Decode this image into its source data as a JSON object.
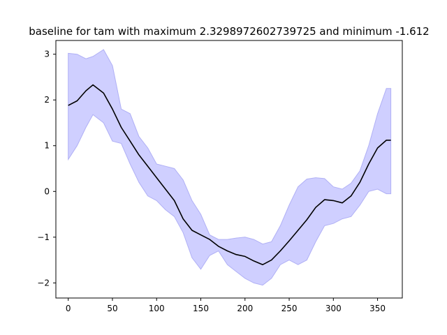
{
  "chart_data": {
    "type": "line",
    "title": "baseline for tam with maximum 2.3298972602739725 and minimum -1.612",
    "xlabel": "",
    "ylabel": "",
    "xlim": [
      -14,
      378
    ],
    "ylim": [
      -2.33,
      3.3
    ],
    "x_ticks": [
      0,
      50,
      100,
      150,
      200,
      250,
      300,
      350
    ],
    "y_ticks": [
      -2,
      -1,
      0,
      1,
      2,
      3
    ],
    "grid": false,
    "legend": "none",
    "colors": {
      "line": "#000000",
      "band_fill": "#cfcfff",
      "band_edge": "#b0b0f5"
    },
    "series": [
      {
        "x": [
          0,
          10,
          20,
          28,
          40,
          50,
          60,
          70,
          80,
          90,
          100,
          110,
          120,
          130,
          140,
          150,
          160,
          170,
          180,
          190,
          200,
          210,
          220,
          230,
          240,
          250,
          260,
          270,
          280,
          290,
          300,
          310,
          320,
          330,
          340,
          350,
          360,
          365
        ],
        "y": [
          1.88,
          1.98,
          2.2,
          2.33,
          2.15,
          1.8,
          1.4,
          1.1,
          0.8,
          0.55,
          0.3,
          0.05,
          -0.2,
          -0.6,
          -0.85,
          -0.95,
          -1.05,
          -1.2,
          -1.3,
          -1.38,
          -1.42,
          -1.52,
          -1.6,
          -1.5,
          -1.3,
          -1.08,
          -0.85,
          -0.62,
          -0.35,
          -0.18,
          -0.2,
          -0.25,
          -0.1,
          0.2,
          0.6,
          0.95,
          1.12,
          1.12
        ],
        "lower": [
          0.7,
          1.0,
          1.4,
          1.68,
          1.5,
          1.1,
          1.05,
          0.6,
          0.2,
          -0.1,
          -0.2,
          -0.4,
          -0.55,
          -0.9,
          -1.45,
          -1.7,
          -1.4,
          -1.3,
          -1.6,
          -1.75,
          -1.9,
          -2.0,
          -2.05,
          -1.9,
          -1.6,
          -1.5,
          -1.6,
          -1.5,
          -1.1,
          -0.75,
          -0.7,
          -0.6,
          -0.55,
          -0.3,
          0.0,
          0.05,
          -0.05,
          -0.05
        ],
        "upper": [
          3.02,
          3.0,
          2.9,
          2.95,
          3.1,
          2.75,
          1.8,
          1.7,
          1.2,
          0.95,
          0.6,
          0.55,
          0.5,
          0.25,
          -0.2,
          -0.5,
          -0.95,
          -1.05,
          -1.05,
          -1.02,
          -1.0,
          -1.05,
          -1.15,
          -1.1,
          -0.75,
          -0.3,
          0.1,
          0.27,
          0.3,
          0.28,
          0.1,
          0.05,
          0.18,
          0.45,
          1.0,
          1.7,
          2.25,
          2.25
        ]
      }
    ]
  }
}
